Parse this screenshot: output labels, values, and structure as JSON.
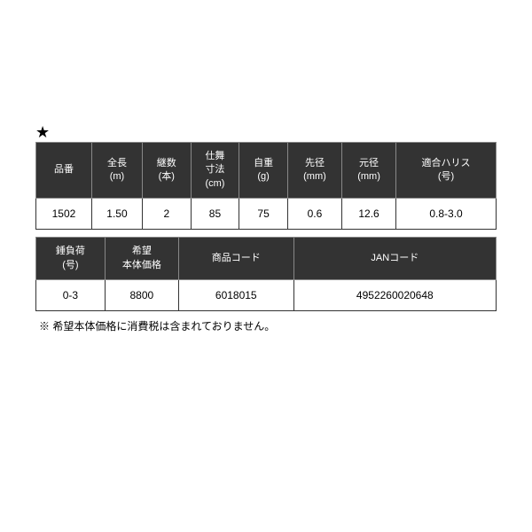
{
  "star": "★",
  "table1": {
    "headers": [
      {
        "line1": "品番",
        "line2": ""
      },
      {
        "line1": "全長",
        "line2": "(m)"
      },
      {
        "line1": "継数",
        "line2": "(本)"
      },
      {
        "line1": "仕舞",
        "line2": "寸法",
        "line3": "(cm)"
      },
      {
        "line1": "自重",
        "line2": "(g)"
      },
      {
        "line1": "先径",
        "line2": "(mm)"
      },
      {
        "line1": "元径",
        "line2": "(mm)"
      },
      {
        "line1": "適合ハリス",
        "line2": "(号)"
      }
    ],
    "row": [
      "1502",
      "1.50",
      "2",
      "85",
      "75",
      "0.6",
      "12.6",
      "0.8-3.0"
    ]
  },
  "table2": {
    "headers": [
      {
        "line1": "錘負荷",
        "line2": "(号)"
      },
      {
        "line1": "希望",
        "line2": "本体価格"
      },
      {
        "line1": "商品コード",
        "line2": ""
      },
      {
        "line1": "JANコード",
        "line2": ""
      }
    ],
    "row": [
      "0-3",
      "8800",
      "6018015",
      "4952260020648"
    ]
  },
  "note": "※ 希望本体価格に消費税は含まれておりません。",
  "colors": {
    "header_bg": "#333333",
    "header_fg": "#ffffff",
    "cell_bg": "#ffffff",
    "cell_fg": "#000000",
    "border": "#888888"
  }
}
